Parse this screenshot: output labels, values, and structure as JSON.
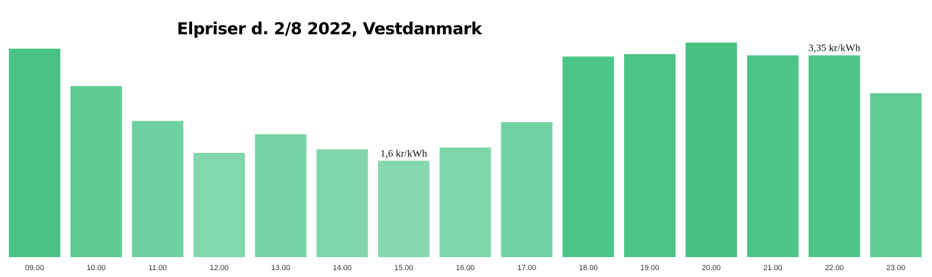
{
  "chart_data": {
    "type": "bar",
    "title": "Elpriser d. 2/8 2022, Vestdanmark",
    "xlabel": "",
    "ylabel": "",
    "categories": [
      "09.00",
      "10.00",
      "11.00",
      "12.00",
      "13.00",
      "14.00",
      "15.00",
      "16.00",
      "17.00",
      "18.00",
      "19.00",
      "20.00",
      "21.00",
      "22.00",
      "23.00"
    ],
    "values": [
      3.46,
      2.84,
      2.26,
      1.73,
      2.04,
      1.79,
      1.6,
      1.82,
      2.24,
      3.33,
      3.37,
      3.56,
      3.35,
      3.35,
      2.72
    ],
    "ylim": [
      0,
      4.3
    ],
    "grid": false,
    "legend": "none",
    "data_labels": [
      {
        "category": "15.00",
        "text": "1,6 kr/kWh"
      },
      {
        "category": "22.00",
        "text": "3,35 kr/kWh"
      }
    ],
    "colors": {
      "high": "#46C283",
      "low": "#86D8AE"
    }
  }
}
